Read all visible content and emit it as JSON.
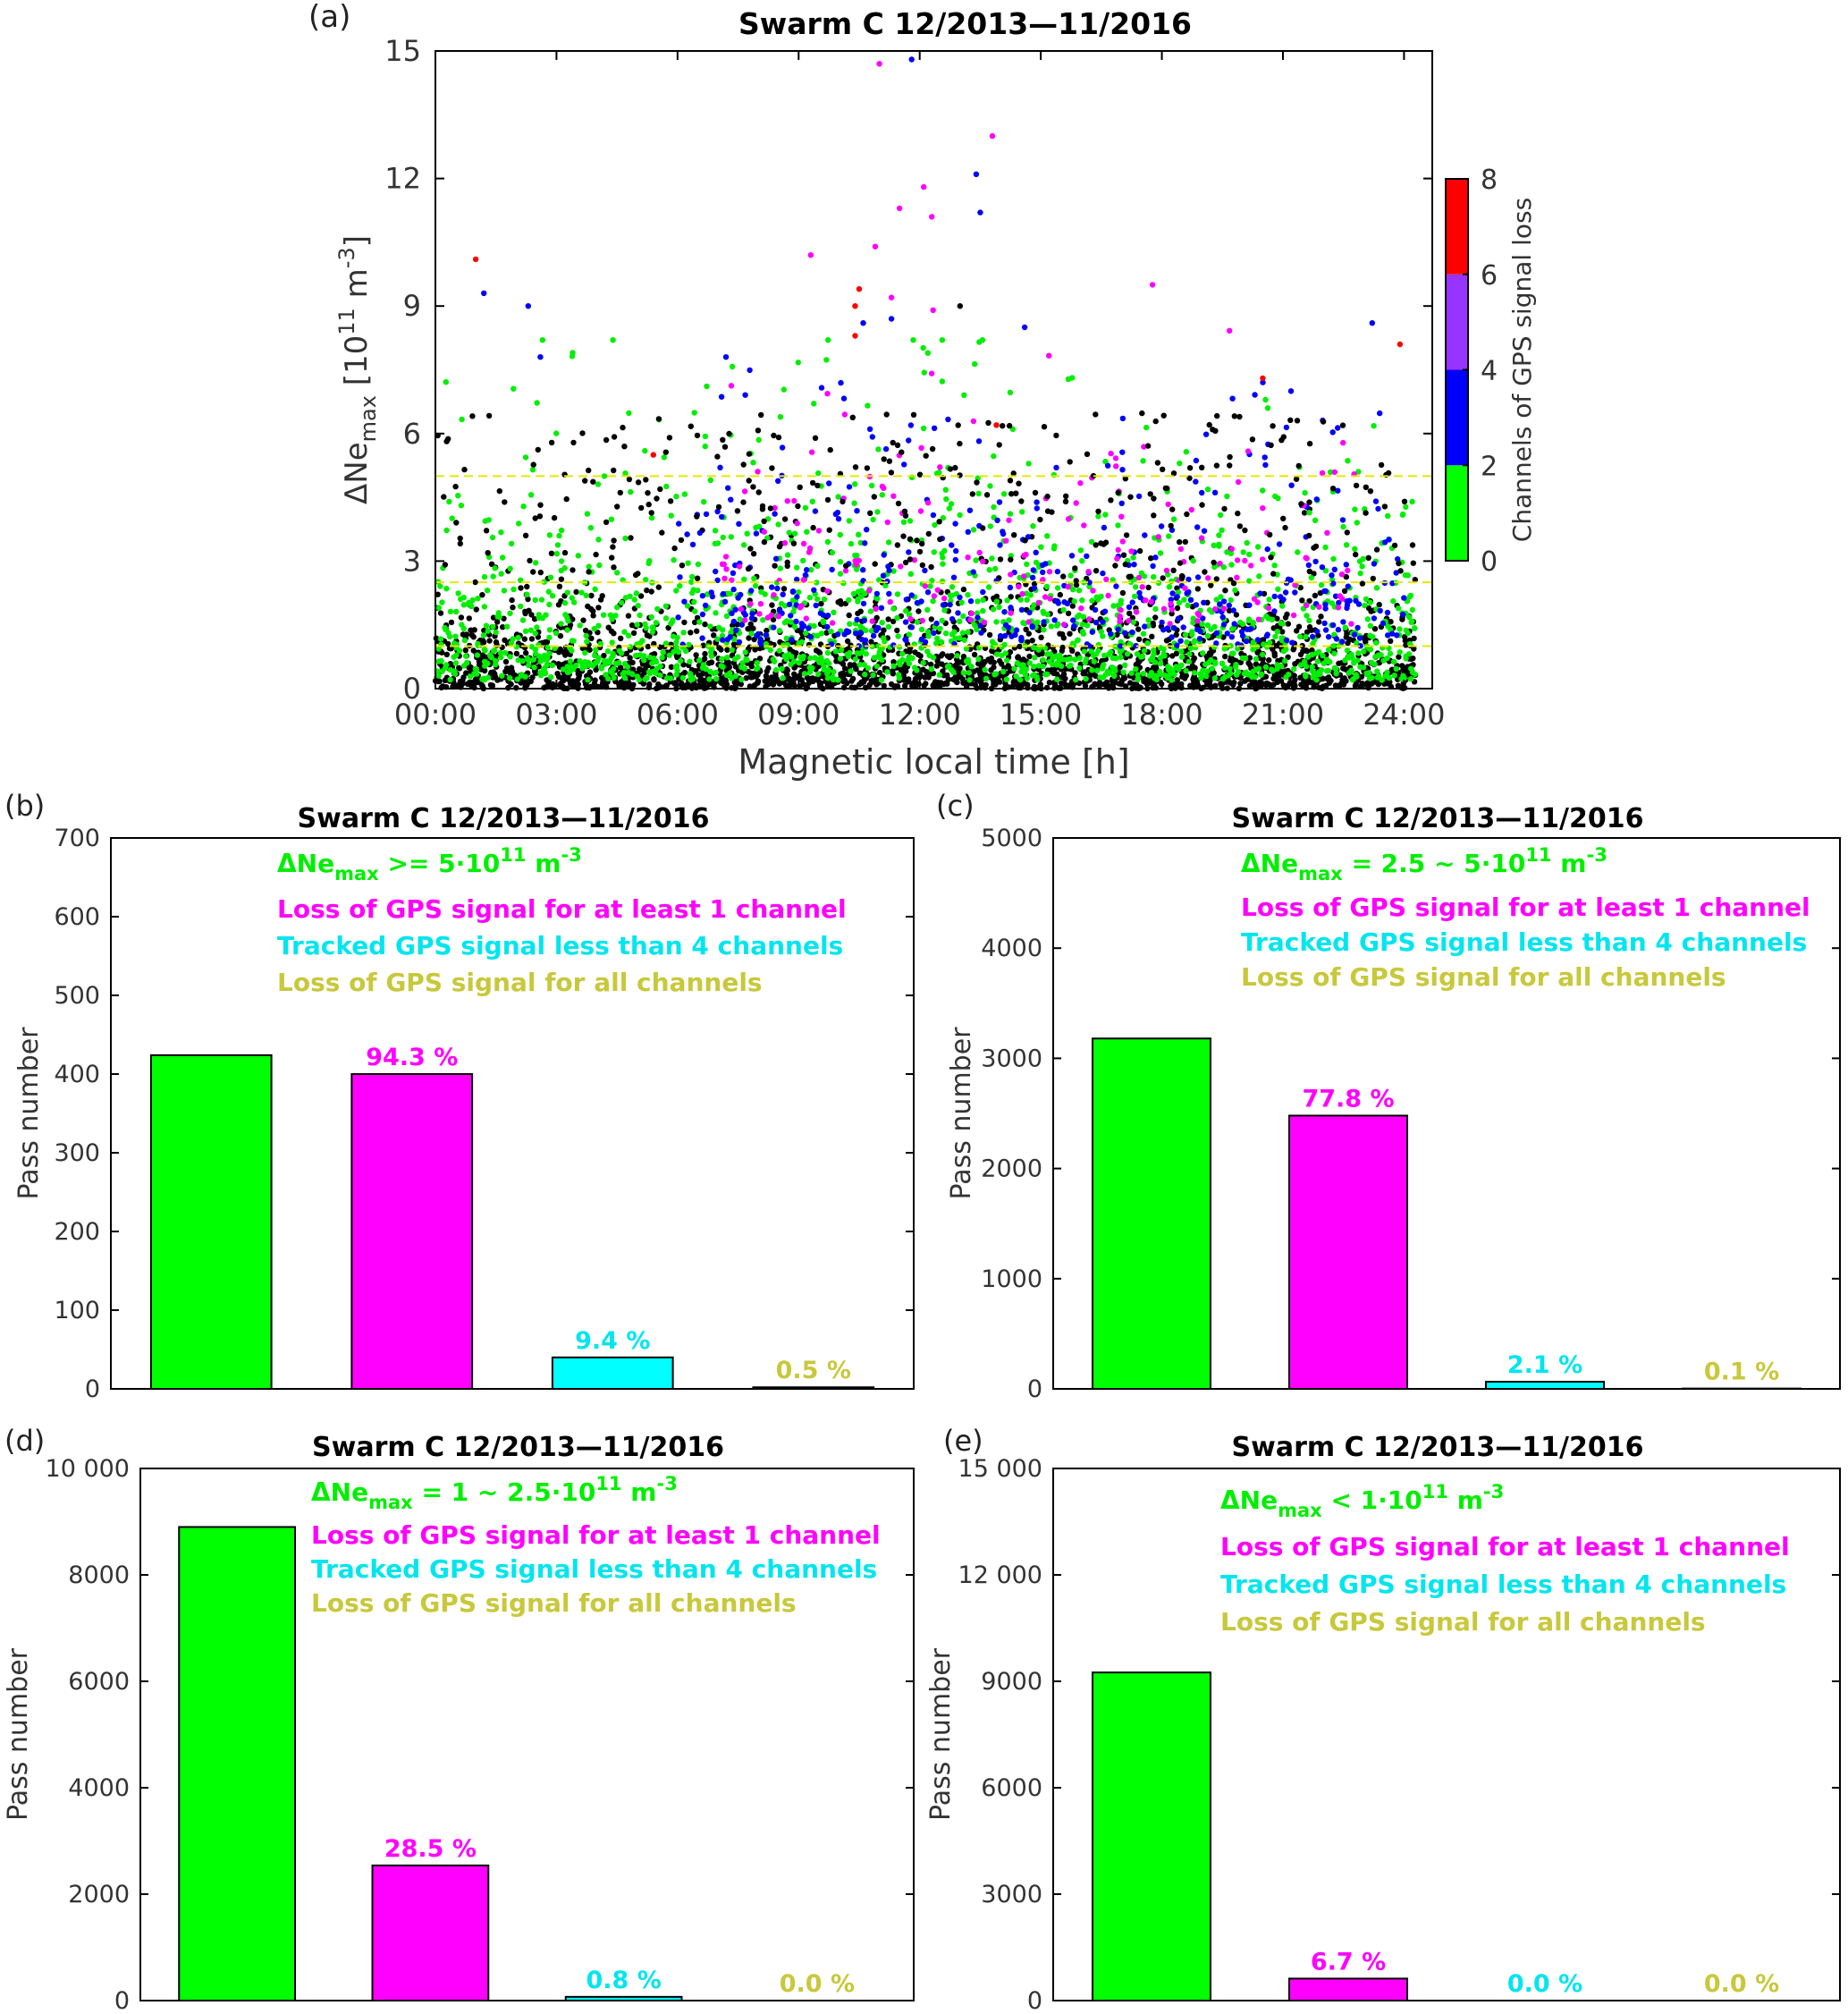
{
  "figure": {
    "panel_a": {
      "label": "(a)",
      "legend_label": "Channels of GPS signal loss"
    },
    "bar_panels": {
      "b": {
        "label": "(b)"
      },
      "c": {
        "label": "(c)"
      },
      "d": {
        "label": "(d)"
      },
      "e": {
        "label": "(e)"
      }
    }
  },
  "chart_data": [
    {
      "id": "a",
      "type": "scatter",
      "title": "Swarm C    12/2013—11/2016",
      "xlabel": "Magnetic local time [h]",
      "ylabel": "ΔNe_max  [10^11 m^-3]",
      "xlim": [
        0,
        24.7
      ],
      "ylim": [
        0,
        15
      ],
      "xticks": [
        0,
        3,
        6,
        9,
        12,
        15,
        18,
        21,
        24
      ],
      "xticklabels": [
        "00:00",
        "03:00",
        "06:00",
        "09:00",
        "12:00",
        "15:00",
        "18:00",
        "21:00",
        "24:00"
      ],
      "yticks": [
        0,
        3,
        6,
        9,
        12,
        15
      ],
      "yticklabels": [
        "0",
        "3",
        "6",
        "9",
        "12",
        "15"
      ],
      "threshold_lines": [
        1,
        2.5,
        5
      ],
      "threshold_color": "#e6e600",
      "colorbar": {
        "label": "Channels of GPS signal loss",
        "ticks": [
          0,
          2,
          4,
          6,
          8
        ],
        "ticklabels": [
          "0",
          "2",
          "4",
          "6",
          "8"
        ],
        "segments": [
          {
            "from": 0,
            "to": 2,
            "color": "#00ff00"
          },
          {
            "from": 2,
            "to": 4,
            "color": "#0000ff"
          },
          {
            "from": 4,
            "to": 6,
            "color": "#9933ff"
          },
          {
            "from": 6,
            "to": 8,
            "color": "#ff0000"
          }
        ]
      },
      "point_colors": {
        "none": "#000000",
        "green": "#00ee00",
        "blue": "#0000ff",
        "magenta": "#ff00ff",
        "red": "#ff0000"
      },
      "notable_points": [
        {
          "x": 11.8,
          "y": 14.8,
          "color": "blue"
        },
        {
          "x": 11.0,
          "y": 14.7,
          "color": "magenta"
        },
        {
          "x": 13.8,
          "y": 13.0,
          "color": "magenta"
        },
        {
          "x": 13.4,
          "y": 12.1,
          "color": "blue"
        },
        {
          "x": 12.1,
          "y": 11.8,
          "color": "magenta"
        },
        {
          "x": 11.5,
          "y": 11.3,
          "color": "magenta"
        },
        {
          "x": 13.5,
          "y": 11.2,
          "color": "blue"
        },
        {
          "x": 12.3,
          "y": 11.1,
          "color": "magenta"
        },
        {
          "x": 10.9,
          "y": 10.4,
          "color": "magenta"
        },
        {
          "x": 9.3,
          "y": 10.2,
          "color": "magenta"
        },
        {
          "x": 1.0,
          "y": 10.1,
          "color": "red"
        },
        {
          "x": 10.5,
          "y": 9.4,
          "color": "red"
        },
        {
          "x": 1.2,
          "y": 9.3,
          "color": "blue"
        },
        {
          "x": 11.3,
          "y": 9.2,
          "color": "magenta"
        },
        {
          "x": 13.0,
          "y": 9.0,
          "color": "black"
        },
        {
          "x": 10.4,
          "y": 9.0,
          "color": "red"
        },
        {
          "x": 2.3,
          "y": 9.0,
          "color": "blue"
        },
        {
          "x": 11.3,
          "y": 8.7,
          "color": "blue"
        },
        {
          "x": 10.6,
          "y": 8.6,
          "color": "blue"
        },
        {
          "x": 14.6,
          "y": 8.5,
          "color": "blue"
        },
        {
          "x": 10.4,
          "y": 8.3,
          "color": "red"
        },
        {
          "x": 23.9,
          "y": 8.1,
          "color": "red"
        },
        {
          "x": 4.4,
          "y": 8.2,
          "color": "green"
        },
        {
          "x": 3.4,
          "y": 7.9,
          "color": "green"
        },
        {
          "x": 2.6,
          "y": 7.8,
          "color": "blue"
        },
        {
          "x": 7.2,
          "y": 7.8,
          "color": "blue"
        },
        {
          "x": 20.5,
          "y": 7.3,
          "color": "red"
        },
        {
          "x": 21.2,
          "y": 7.0,
          "color": "blue"
        },
        {
          "x": 13.9,
          "y": 6.2,
          "color": "red"
        },
        {
          "x": 5.4,
          "y": 5.5,
          "color": "red"
        }
      ]
    },
    {
      "id": "b",
      "type": "bar",
      "title": "Swarm C    12/2013—11/2016",
      "ylabel": "Pass number",
      "ylim": [
        0,
        700
      ],
      "yticks": [
        0,
        100,
        200,
        300,
        400,
        500,
        600,
        700
      ],
      "yticklabels": [
        "0",
        "100",
        "200",
        "300",
        "400",
        "500",
        "600",
        "700"
      ],
      "legend": [
        {
          "text": "ΔNe_max >= 5·10^11 m^-3",
          "color": "#00ee00"
        },
        {
          "text": "Loss of GPS signal for at least 1 channel",
          "color": "#ff00ff"
        },
        {
          "text": "Tracked GPS signal less than 4 channels",
          "color": "#00e5ee"
        },
        {
          "text": "Loss of GPS signal for all channels",
          "color": "#c8c83c"
        }
      ],
      "bars": [
        {
          "value": 424,
          "color": "#00ff00",
          "label": ""
        },
        {
          "value": 400,
          "color": "#ff00ff",
          "label": "94.3 %"
        },
        {
          "value": 40,
          "color": "#00ffff",
          "label": "9.4 %"
        },
        {
          "value": 2,
          "color": "#c8c83c",
          "label": "0.5 %"
        }
      ]
    },
    {
      "id": "c",
      "type": "bar",
      "title": "Swarm C    12/2013—11/2016",
      "ylabel": "Pass number",
      "ylim": [
        0,
        5000
      ],
      "yticks": [
        0,
        1000,
        2000,
        3000,
        4000,
        5000
      ],
      "yticklabels": [
        "0",
        "1000",
        "2000",
        "3000",
        "4000",
        "5000"
      ],
      "legend": [
        {
          "text": "ΔNe_max = 2.5 ~ 5·10^11 m^-3",
          "color": "#00ee00"
        },
        {
          "text": "Loss of GPS signal for at least 1 channel",
          "color": "#ff00ff"
        },
        {
          "text": "Tracked GPS signal less than 4 channels",
          "color": "#00e5ee"
        },
        {
          "text": "Loss of GPS signal for all channels",
          "color": "#c8c83c"
        }
      ],
      "bars": [
        {
          "value": 3180,
          "color": "#00ff00",
          "label": ""
        },
        {
          "value": 2480,
          "color": "#ff00ff",
          "label": "77.8 %"
        },
        {
          "value": 65,
          "color": "#00ffff",
          "label": "2.1 %"
        },
        {
          "value": 3,
          "color": "#c8c83c",
          "label": "0.1 %"
        }
      ]
    },
    {
      "id": "d",
      "type": "bar",
      "title": "Swarm C    12/2013—11/2016",
      "ylabel": "Pass number",
      "ylim": [
        0,
        10000
      ],
      "yticks": [
        0,
        2000,
        4000,
        6000,
        8000,
        10000
      ],
      "yticklabels": [
        "0",
        "2000",
        "4000",
        "6000",
        "8000",
        "10 000"
      ],
      "legend": [
        {
          "text": "ΔNe_max = 1 ~ 2.5·10^11 m^-3",
          "color": "#00ee00"
        },
        {
          "text": "Loss of GPS signal for at least 1 channel",
          "color": "#ff00ff"
        },
        {
          "text": "Tracked GPS signal less than 4 channels",
          "color": "#00e5ee"
        },
        {
          "text": "Loss of GPS signal for all channels",
          "color": "#c8c83c"
        }
      ],
      "bars": [
        {
          "value": 8900,
          "color": "#00ff00",
          "label": ""
        },
        {
          "value": 2540,
          "color": "#ff00ff",
          "label": "28.5 %"
        },
        {
          "value": 70,
          "color": "#00ffff",
          "label": "0.8 %"
        },
        {
          "value": 0,
          "color": "#c8c83c",
          "label": "0.0 %"
        }
      ]
    },
    {
      "id": "e",
      "type": "bar",
      "title": "Swarm C    12/2013—11/2016",
      "ylabel": "Pass number",
      "ylim": [
        0,
        15000
      ],
      "yticks": [
        0,
        3000,
        6000,
        9000,
        12000,
        15000
      ],
      "yticklabels": [
        "0",
        "3000",
        "6000",
        "9000",
        "12 000",
        "15 000"
      ],
      "legend": [
        {
          "text": "ΔNe_max < 1·10^11 m^-3",
          "color": "#00ee00"
        },
        {
          "text": "Loss of GPS signal for at least 1 channel",
          "color": "#ff00ff"
        },
        {
          "text": "Tracked GPS signal less than 4 channels",
          "color": "#00e5ee"
        },
        {
          "text": "Loss of GPS signal for all channels",
          "color": "#c8c83c"
        }
      ],
      "bars": [
        {
          "value": 9250,
          "color": "#00ff00",
          "label": ""
        },
        {
          "value": 620,
          "color": "#ff00ff",
          "label": "6.7 %"
        },
        {
          "value": 0,
          "color": "#00ffff",
          "label": "0.0 %"
        },
        {
          "value": 0,
          "color": "#c8c83c",
          "label": "0.0 %"
        }
      ]
    }
  ]
}
